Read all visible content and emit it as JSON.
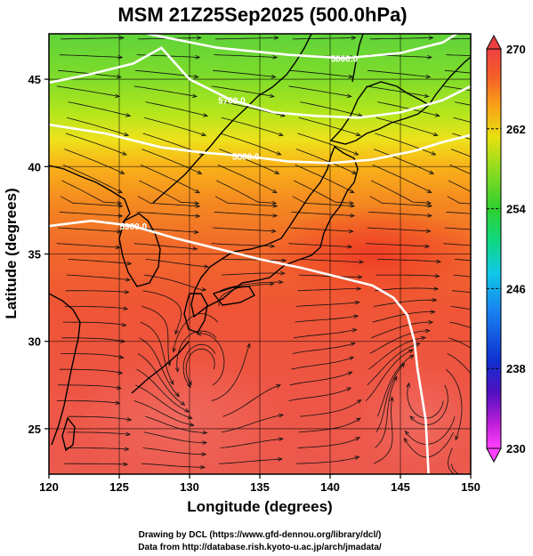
{
  "title": "MSM 21Z25Sep2025 (500.0hPa)",
  "x_axis": {
    "label": "Longitude (degrees)",
    "range": [
      120,
      150
    ],
    "ticks": [
      120,
      125,
      130,
      135,
      140,
      145,
      150
    ]
  },
  "y_axis": {
    "label": "Latitude  (degrees)",
    "range": [
      22.4,
      47.6
    ],
    "ticks": [
      25,
      30,
      35,
      40,
      45
    ]
  },
  "colorbar": {
    "min": 230,
    "max": 270,
    "ticks": [
      230,
      238,
      246,
      254,
      262,
      270
    ]
  },
  "contours": [
    {
      "label": "5700.0",
      "points": [
        [
          120,
          44.8
        ],
        [
          123,
          45.3
        ],
        [
          126,
          45.9
        ],
        [
          128,
          46.8
        ],
        [
          130,
          45.0
        ],
        [
          133,
          43.8
        ],
        [
          136,
          43.1
        ],
        [
          139,
          42.9
        ],
        [
          142,
          42.8
        ],
        [
          145,
          43.1
        ],
        [
          148,
          43.8
        ],
        [
          150,
          44.6
        ]
      ]
    },
    {
      "label": "5800.0",
      "points": [
        [
          127,
          47.6
        ],
        [
          132,
          46.8
        ],
        [
          137,
          46.4
        ],
        [
          141,
          46.2
        ],
        [
          145,
          46.5
        ],
        [
          148,
          47.1
        ],
        [
          149,
          47.6
        ]
      ]
    },
    {
      "label": "5880.0",
      "points": [
        [
          120,
          42.4
        ],
        [
          124,
          41.9
        ],
        [
          128,
          41.1
        ],
        [
          131,
          40.8
        ],
        [
          134,
          40.6
        ],
        [
          137,
          40.3
        ],
        [
          140,
          40.2
        ],
        [
          143,
          40.4
        ],
        [
          146,
          40.9
        ],
        [
          148,
          41.4
        ],
        [
          150,
          41.8
        ]
      ]
    },
    {
      "label": "5900.0",
      "points": [
        [
          120,
          36.6
        ],
        [
          123,
          36.9
        ],
        [
          126,
          36.6
        ],
        [
          129,
          35.9
        ],
        [
          132,
          35.3
        ],
        [
          135,
          34.7
        ],
        [
          138,
          34.2
        ],
        [
          141,
          33.6
        ],
        [
          143,
          33.2
        ],
        [
          144.5,
          32.5
        ],
        [
          145.5,
          31.5
        ],
        [
          146,
          30.0
        ],
        [
          146.2,
          28.5
        ],
        [
          146.5,
          27.0
        ],
        [
          146.8,
          25.5
        ],
        [
          146.9,
          24.0
        ],
        [
          147,
          22.4
        ]
      ]
    }
  ],
  "credits": [
    "Drawing by DCL (https://www.gfd-dennou.org/library/dcl/)",
    "Data from http://database.rish.kyoto-u.ac.jp/arch/jmadata/"
  ]
}
